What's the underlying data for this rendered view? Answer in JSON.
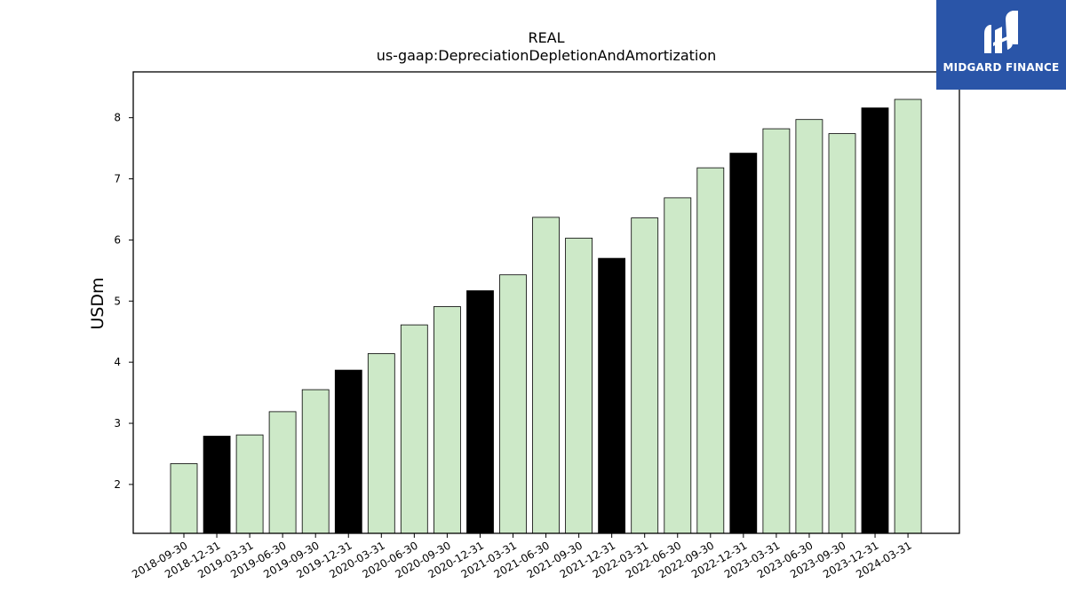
{
  "brand": {
    "name": "MIDGARD FINANCE",
    "background": "#2a55a8"
  },
  "chart_data": {
    "type": "bar",
    "title": "REAL",
    "subtitle": "us-gaap:DepreciationDepletionAndAmortization",
    "xlabel": "",
    "ylabel": "USDm",
    "ylim": [
      1.2,
      8.75
    ],
    "yticks": [
      2,
      3,
      4,
      5,
      6,
      7,
      8
    ],
    "grid": false,
    "colors": {
      "quarter": "#cde9c8",
      "year_end": "#000000",
      "edge": "#000000"
    },
    "categories": [
      "2018-09-30",
      "2018-12-31",
      "2019-03-31",
      "2019-06-30",
      "2019-09-30",
      "2019-12-31",
      "2020-03-31",
      "2020-06-30",
      "2020-09-30",
      "2020-12-31",
      "2021-03-31",
      "2021-06-30",
      "2021-09-30",
      "2021-12-31",
      "2022-03-31",
      "2022-06-30",
      "2022-09-30",
      "2022-12-31",
      "2023-03-31",
      "2023-06-30",
      "2023-09-30",
      "2023-12-31",
      "2024-03-31"
    ],
    "values": [
      2.34,
      2.79,
      2.81,
      3.19,
      3.55,
      3.87,
      4.14,
      4.61,
      4.91,
      5.17,
      5.43,
      6.37,
      6.03,
      5.7,
      6.36,
      6.69,
      7.18,
      7.42,
      7.82,
      7.97,
      7.74,
      8.16,
      8.3
    ]
  }
}
